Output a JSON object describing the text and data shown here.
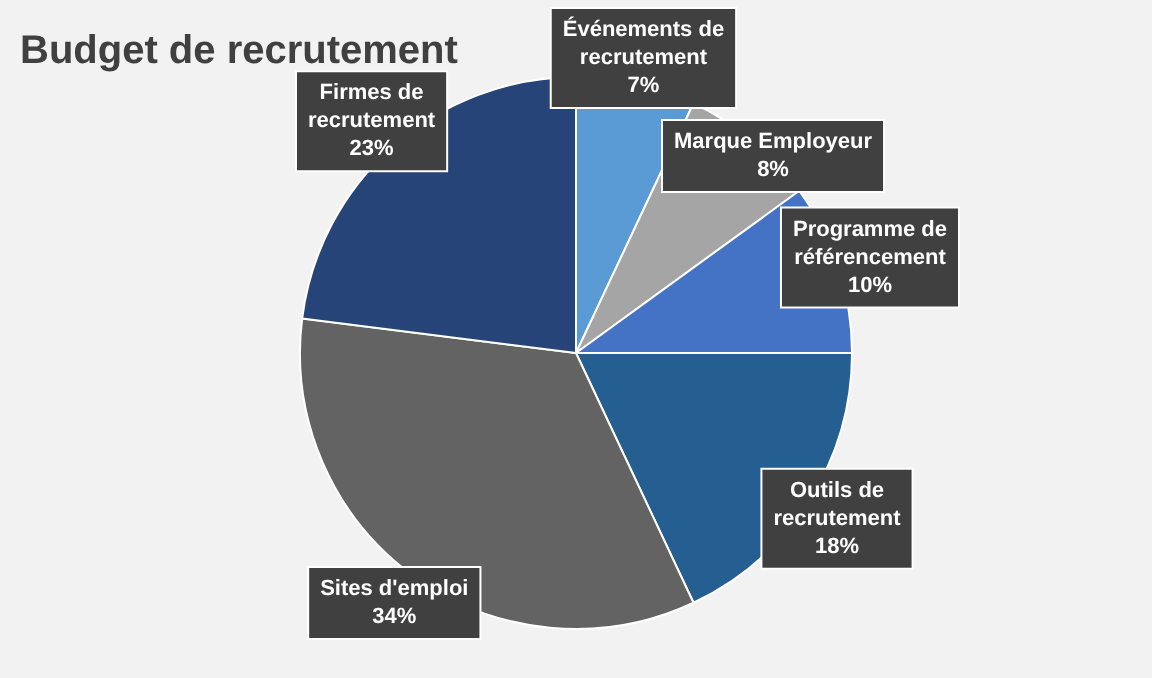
{
  "chart_data": {
    "type": "pie",
    "title": "Budget de recrutement",
    "categories": [
      "Événements de recrutement",
      "Marque Employeur",
      "Programme de référencement",
      "Outils de recrutement",
      "Sites d'emploi",
      "Firmes de recrutement"
    ],
    "values": [
      7,
      8,
      10,
      18,
      34,
      23
    ],
    "colors": [
      "#5b9bd5",
      "#a5a5a5",
      "#4472c4",
      "#255e91",
      "#636363",
      "#264478"
    ],
    "value_labels": [
      "7%",
      "8%",
      "10%",
      "18%",
      "34%",
      "23%"
    ],
    "legend": false
  }
}
